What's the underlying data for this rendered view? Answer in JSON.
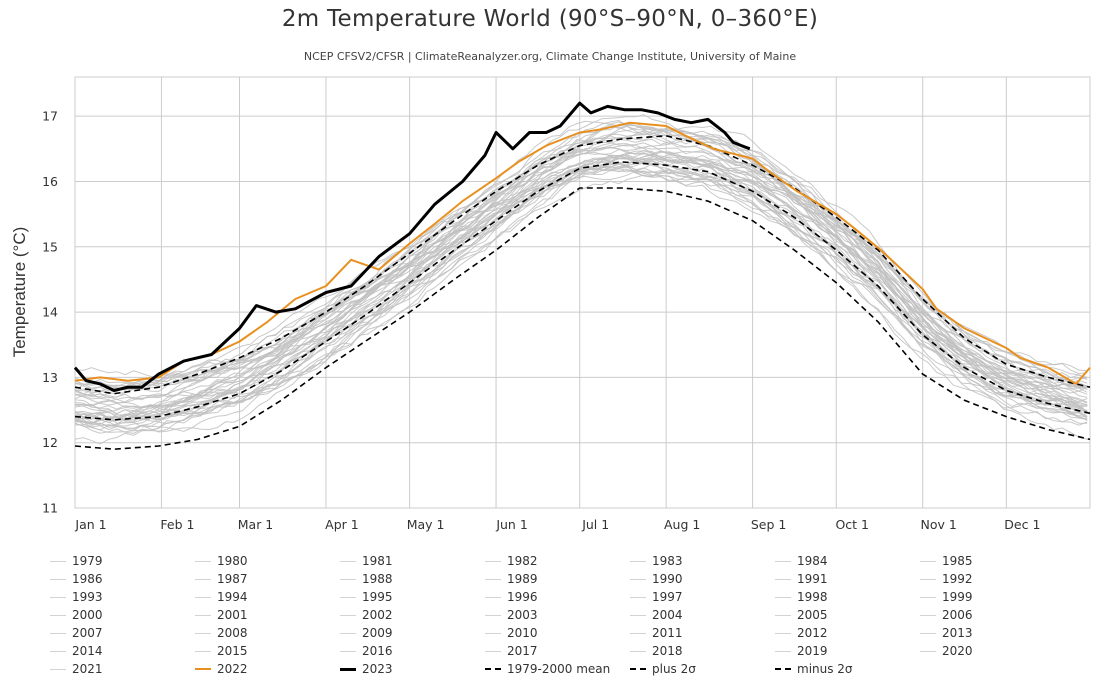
{
  "chart_data": {
    "type": "line",
    "title": "2m Temperature World (90°S–90°N, 0–360°E)",
    "subtitle": "NCEP CFSV2/CFSR | ClimateReanalyzer.org, Climate Change Institute, University of Maine",
    "xlabel": "",
    "ylabel": "Temperature (°C)",
    "ylim": [
      11,
      17.6
    ],
    "xlim": [
      1,
      365
    ],
    "y_ticks": [
      "11",
      "12",
      "13",
      "14",
      "15",
      "16",
      "17"
    ],
    "x_tick_labels": [
      {
        "label": "Jan 1",
        "day": 1
      },
      {
        "label": "Feb 1",
        "day": 32
      },
      {
        "label": "Mar 1",
        "day": 60
      },
      {
        "label": "Apr 1",
        "day": 91
      },
      {
        "label": "May 1",
        "day": 121
      },
      {
        "label": "Jun 1",
        "day": 152
      },
      {
        "label": "Jul 1",
        "day": 182
      },
      {
        "label": "Aug 1",
        "day": 213
      },
      {
        "label": "Sep 1",
        "day": 244
      },
      {
        "label": "Oct 1",
        "day": 274
      },
      {
        "label": "Nov 1",
        "day": 305
      },
      {
        "label": "Dec 1",
        "day": 335
      }
    ],
    "grid": true,
    "legend_position": "bottom",
    "colors": {
      "historical": "#c0c0c0",
      "y2022": "#e8901f",
      "y2023": "#000000",
      "reference": "#000000",
      "grid": "#cccccc"
    },
    "series": [
      {
        "name": "1979",
        "group": "historical"
      },
      {
        "name": "1980",
        "group": "historical"
      },
      {
        "name": "1981",
        "group": "historical"
      },
      {
        "name": "1982",
        "group": "historical"
      },
      {
        "name": "1983",
        "group": "historical"
      },
      {
        "name": "1984",
        "group": "historical"
      },
      {
        "name": "1985",
        "group": "historical"
      },
      {
        "name": "1986",
        "group": "historical"
      },
      {
        "name": "1987",
        "group": "historical"
      },
      {
        "name": "1988",
        "group": "historical"
      },
      {
        "name": "1989",
        "group": "historical"
      },
      {
        "name": "1990",
        "group": "historical"
      },
      {
        "name": "1991",
        "group": "historical"
      },
      {
        "name": "1992",
        "group": "historical"
      },
      {
        "name": "1993",
        "group": "historical"
      },
      {
        "name": "1994",
        "group": "historical"
      },
      {
        "name": "1995",
        "group": "historical"
      },
      {
        "name": "1996",
        "group": "historical"
      },
      {
        "name": "1997",
        "group": "historical"
      },
      {
        "name": "1998",
        "group": "historical"
      },
      {
        "name": "1999",
        "group": "historical"
      },
      {
        "name": "2000",
        "group": "historical"
      },
      {
        "name": "2001",
        "group": "historical"
      },
      {
        "name": "2002",
        "group": "historical"
      },
      {
        "name": "2003",
        "group": "historical"
      },
      {
        "name": "2004",
        "group": "historical"
      },
      {
        "name": "2005",
        "group": "historical"
      },
      {
        "name": "2006",
        "group": "historical"
      },
      {
        "name": "2007",
        "group": "historical"
      },
      {
        "name": "2008",
        "group": "historical"
      },
      {
        "name": "2009",
        "group": "historical"
      },
      {
        "name": "2010",
        "group": "historical"
      },
      {
        "name": "2011",
        "group": "historical"
      },
      {
        "name": "2012",
        "group": "historical"
      },
      {
        "name": "2013",
        "group": "historical"
      },
      {
        "name": "2014",
        "group": "historical"
      },
      {
        "name": "2015",
        "group": "historical"
      },
      {
        "name": "2016",
        "group": "historical"
      },
      {
        "name": "2017",
        "group": "historical"
      },
      {
        "name": "2018",
        "group": "historical"
      },
      {
        "name": "2019",
        "group": "historical"
      },
      {
        "name": "2020",
        "group": "historical"
      },
      {
        "name": "2021",
        "group": "historical"
      },
      {
        "name": "2022",
        "group": "highlight",
        "color": "#e8901f",
        "x": [
          1,
          10,
          20,
          31,
          40,
          50,
          60,
          70,
          80,
          91,
          100,
          110,
          121,
          130,
          140,
          152,
          160,
          170,
          182,
          190,
          200,
          213,
          220,
          230,
          244,
          250,
          260,
          274,
          280,
          290,
          305,
          310,
          320,
          335,
          340,
          350,
          360,
          365
        ],
        "y": [
          12.95,
          13.0,
          12.95,
          13.0,
          13.25,
          13.35,
          13.55,
          13.85,
          14.2,
          14.4,
          14.8,
          14.65,
          15.05,
          15.35,
          15.7,
          16.05,
          16.3,
          16.55,
          16.75,
          16.8,
          16.9,
          16.85,
          16.7,
          16.5,
          16.35,
          16.15,
          15.85,
          15.5,
          15.3,
          14.95,
          14.35,
          14.05,
          13.75,
          13.45,
          13.3,
          13.15,
          12.9,
          13.15
        ]
      },
      {
        "name": "2023",
        "group": "highlight",
        "color": "#000000",
        "x": [
          1,
          5,
          10,
          15,
          20,
          25,
          31,
          40,
          50,
          60,
          66,
          73,
          80,
          91,
          100,
          110,
          121,
          130,
          140,
          148,
          152,
          158,
          164,
          170,
          175,
          182,
          186,
          192,
          198,
          204,
          210,
          216,
          222,
          228,
          234,
          237,
          240,
          243
        ],
        "y": [
          13.15,
          12.95,
          12.9,
          12.8,
          12.85,
          12.85,
          13.05,
          13.25,
          13.35,
          13.75,
          14.1,
          14.0,
          14.05,
          14.3,
          14.4,
          14.85,
          15.2,
          15.65,
          16.0,
          16.4,
          16.75,
          16.5,
          16.75,
          16.75,
          16.85,
          17.2,
          17.05,
          17.15,
          17.1,
          17.1,
          17.05,
          16.95,
          16.9,
          16.95,
          16.75,
          16.6,
          16.55,
          16.5
        ]
      },
      {
        "name": "1979-2000 mean",
        "group": "reference",
        "dash": "mean",
        "x": [
          1,
          15,
          31,
          45,
          60,
          75,
          91,
          105,
          121,
          137,
          152,
          167,
          182,
          197,
          213,
          228,
          244,
          259,
          274,
          289,
          305,
          320,
          335,
          350,
          365
        ],
        "y": [
          12.4,
          12.35,
          12.4,
          12.55,
          12.75,
          13.1,
          13.55,
          13.95,
          14.45,
          14.95,
          15.4,
          15.85,
          16.2,
          16.3,
          16.25,
          16.15,
          15.85,
          15.45,
          14.95,
          14.4,
          13.65,
          13.15,
          12.8,
          12.6,
          12.45
        ]
      },
      {
        "name": "plus 2σ",
        "group": "reference",
        "dash": "plus",
        "x": [
          1,
          15,
          31,
          45,
          60,
          75,
          91,
          105,
          121,
          137,
          152,
          167,
          182,
          197,
          213,
          228,
          244,
          259,
          274,
          289,
          305,
          320,
          335,
          350,
          365
        ],
        "y": [
          12.85,
          12.75,
          12.85,
          13.05,
          13.3,
          13.6,
          14.0,
          14.4,
          14.9,
          15.4,
          15.85,
          16.25,
          16.55,
          16.65,
          16.7,
          16.55,
          16.25,
          15.9,
          15.45,
          14.95,
          14.2,
          13.6,
          13.2,
          13.0,
          12.85
        ]
      },
      {
        "name": "minus 2σ",
        "group": "reference",
        "dash": "minus",
        "x": [
          1,
          15,
          31,
          45,
          60,
          75,
          91,
          105,
          121,
          137,
          152,
          167,
          182,
          197,
          213,
          228,
          244,
          259,
          274,
          289,
          305,
          320,
          335,
          350,
          365
        ],
        "y": [
          11.95,
          11.9,
          11.95,
          12.05,
          12.25,
          12.65,
          13.15,
          13.55,
          14.0,
          14.5,
          14.95,
          15.45,
          15.9,
          15.9,
          15.85,
          15.7,
          15.4,
          14.95,
          14.45,
          13.85,
          13.05,
          12.65,
          12.4,
          12.2,
          12.05
        ]
      }
    ]
  }
}
